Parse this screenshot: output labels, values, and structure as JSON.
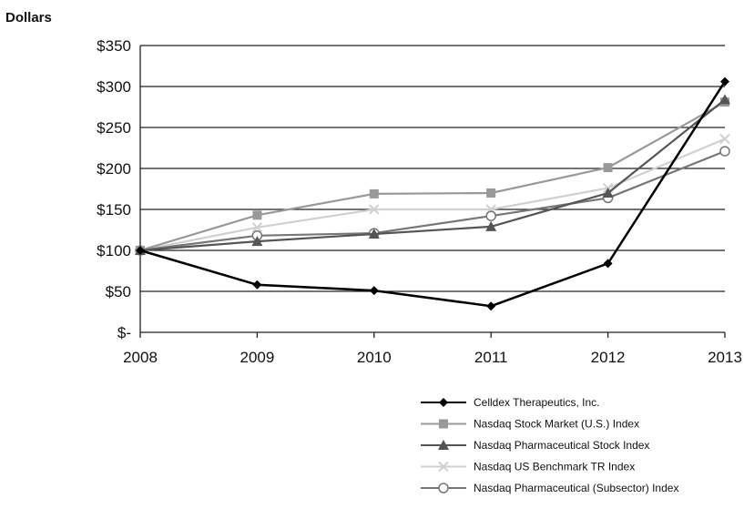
{
  "chart_data": {
    "type": "line",
    "title": "",
    "ylabel": "Dollars",
    "xlabel": "",
    "x": [
      "2008",
      "2009",
      "2010",
      "2011",
      "2012",
      "2013"
    ],
    "ylim": [
      0,
      350
    ],
    "yticks": [
      0,
      50,
      100,
      150,
      200,
      250,
      300,
      350
    ],
    "ytick_labels": [
      "$-",
      "$50",
      "$100",
      "$150",
      "$200",
      "$250",
      "$300",
      "$350"
    ],
    "grid": true,
    "legend_position": "bottom-right",
    "series": [
      {
        "name": "Celldex Therapeutics, Inc.",
        "values": [
          100,
          58,
          51,
          32,
          84,
          306
        ],
        "color": "#000000",
        "marker": "diamond"
      },
      {
        "name": "Nasdaq Stock Market (U.S.) Index",
        "values": [
          100,
          143,
          169,
          170,
          201,
          281
        ],
        "color": "#999999",
        "marker": "square"
      },
      {
        "name": "Nasdaq Pharmaceutical Stock Index",
        "values": [
          100,
          111,
          120,
          129,
          170,
          284
        ],
        "color": "#555555",
        "marker": "triangle"
      },
      {
        "name": "Nasdaq US Benchmark TR Index",
        "values": [
          100,
          128,
          150,
          150,
          176,
          236
        ],
        "color": "#d0d0d0",
        "marker": "x"
      },
      {
        "name": "Nasdaq Pharmaceutical (Subsector) Index",
        "values": [
          100,
          118,
          121,
          142,
          164,
          221
        ],
        "color": "#777777",
        "marker": "circle"
      }
    ]
  }
}
